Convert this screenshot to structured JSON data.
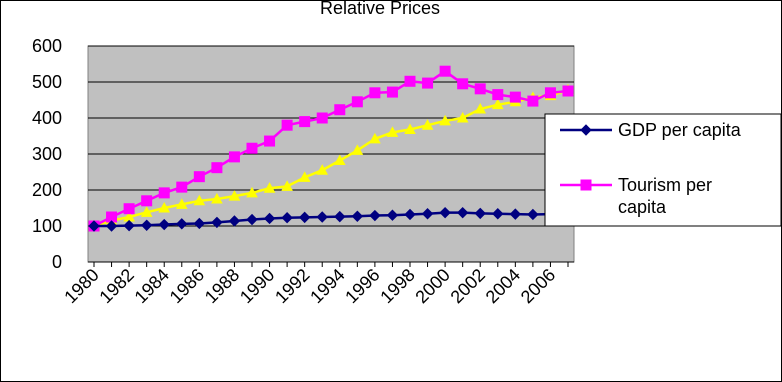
{
  "chart_data": {
    "type": "line",
    "title": "Relative Prices",
    "xlabel": "",
    "ylabel": "",
    "ylim": [
      0,
      600
    ],
    "yticks": [
      0,
      100,
      200,
      300,
      400,
      500,
      600
    ],
    "x": [
      1980,
      1981,
      1982,
      1983,
      1984,
      1985,
      1986,
      1987,
      1988,
      1989,
      1990,
      1991,
      1992,
      1993,
      1994,
      1995,
      1996,
      1997,
      1998,
      1999,
      2000,
      2001,
      2002,
      2003,
      2004,
      2005,
      2006,
      2007
    ],
    "xtick_labels": [
      "1980",
      "1982",
      "1984",
      "1986",
      "1988",
      "1990",
      "1992",
      "1994",
      "1996",
      "1998",
      "2000",
      "2002",
      "2004",
      "2006"
    ],
    "grid": true,
    "legend_position": "right",
    "series": [
      {
        "name": "GDP per capita",
        "color": "#000080",
        "marker": "diamond",
        "values": [
          100,
          100,
          101,
          102,
          104,
          106,
          107,
          110,
          114,
          118,
          121,
          123,
          124,
          125,
          126,
          127,
          129,
          130,
          132,
          134,
          137,
          137,
          135,
          134,
          133,
          132,
          133,
          134
        ]
      },
      {
        "name": "Tourism per capita",
        "color": "#ff00ff",
        "marker": "square",
        "values": [
          100,
          125,
          148,
          170,
          192,
          208,
          237,
          262,
          292,
          316,
          336,
          380,
          390,
          400,
          423,
          445,
          470,
          472,
          502,
          497,
          530,
          495,
          481,
          465,
          458,
          447,
          470,
          475
        ]
      },
      {
        "name": "",
        "color": "#ffff00",
        "marker": "triangle",
        "values": [
          100,
          115,
          125,
          138,
          150,
          160,
          170,
          175,
          183,
          192,
          205,
          210,
          235,
          255,
          282,
          310,
          342,
          360,
          368,
          380,
          392,
          400,
          425,
          437,
          445,
          457,
          462,
          478
        ]
      }
    ]
  }
}
